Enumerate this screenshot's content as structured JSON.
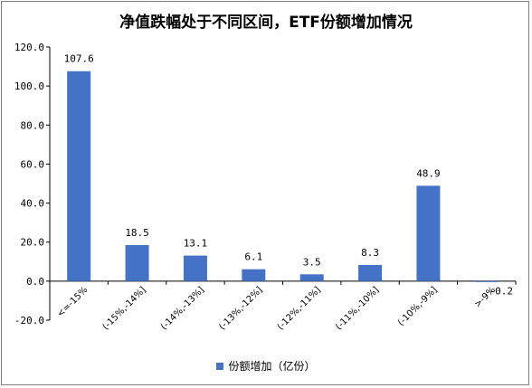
{
  "chart_data": {
    "type": "bar",
    "title": "净值跌幅处于不同区间，ETF份额增加情况",
    "categories": [
      "<=-15%",
      "(-15%,-14%]",
      "(-14%,-13%]",
      "(-13%,-12%]",
      "(-12%,-11%]",
      "(-11%,-10%]",
      "(-10%,-9%]",
      ">-9%"
    ],
    "series": [
      {
        "name": "份额增加（亿份）",
        "values": [
          107.6,
          18.5,
          13.1,
          6.1,
          3.5,
          8.3,
          48.9,
          -0.2
        ]
      }
    ],
    "value_labels": [
      "107.6",
      "18.5",
      "13.1",
      "6.1",
      "3.5",
      "8.3",
      "48.9",
      "-0.2"
    ],
    "ylim": [
      -20,
      120
    ],
    "yticks": [
      "-20.0",
      "0.0",
      "20.0",
      "40.0",
      "60.0",
      "80.0",
      "100.0",
      "120.0"
    ],
    "ytick_values": [
      -20,
      0,
      20,
      40,
      60,
      80,
      100,
      120
    ],
    "grid": false,
    "legend_position": "bottom",
    "bar_color": "#4472c4"
  }
}
